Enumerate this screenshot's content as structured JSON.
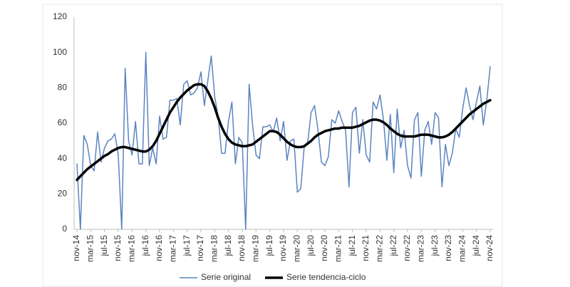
{
  "chart_data": {
    "type": "line",
    "categories": [
      "nov-14",
      null,
      null,
      null,
      "mar-15",
      null,
      null,
      null,
      "jul-15",
      null,
      null,
      null,
      "nov-15",
      null,
      null,
      null,
      "mar-16",
      null,
      null,
      null,
      "jul-16",
      null,
      null,
      null,
      "nov-16",
      null,
      null,
      null,
      "mar-17",
      null,
      null,
      null,
      "jul-17",
      null,
      null,
      null,
      "nov-17",
      null,
      null,
      null,
      "mar-18",
      null,
      null,
      null,
      "jul-18",
      null,
      null,
      null,
      "nov-18",
      null,
      null,
      null,
      "mar-19",
      null,
      null,
      null,
      "jul-19",
      null,
      null,
      null,
      "nov-19",
      null,
      null,
      null,
      "mar-20",
      null,
      null,
      null,
      "jul-20",
      null,
      null,
      null,
      "nov-20",
      null,
      null,
      null,
      "mar-21",
      null,
      null,
      null,
      "jul-21",
      null,
      null,
      null,
      "nov-21",
      null,
      null,
      null,
      "mar-22",
      null,
      null,
      null,
      "jul-22",
      null,
      null,
      null,
      "nov-22",
      null,
      null,
      null,
      "mar-23",
      null,
      null,
      null,
      "jul-23",
      null,
      null,
      null,
      "nov-23",
      null,
      null,
      null,
      "mar-24",
      null,
      null,
      null,
      "jul-24",
      null,
      null,
      null,
      "nov-24"
    ],
    "series": [
      {
        "name": "Serie original",
        "color": "#5b84bf",
        "width": 1.5,
        "values": [
          37,
          0,
          53,
          48,
          36,
          33,
          55,
          38,
          46,
          50,
          51,
          54,
          42,
          0,
          91,
          50,
          42,
          61,
          37,
          37,
          100,
          36,
          46,
          37,
          64,
          51,
          52,
          73,
          73,
          74,
          59,
          82,
          84,
          76,
          77,
          80,
          89,
          70,
          84,
          98,
          75,
          64,
          43,
          43,
          61,
          72,
          37,
          52,
          49,
          0,
          82,
          59,
          42,
          40,
          58,
          58,
          59,
          55,
          63,
          50,
          61,
          39,
          50,
          51,
          21,
          23,
          47,
          49,
          66,
          70,
          56,
          38,
          36,
          41,
          62,
          60,
          67,
          61,
          56,
          24,
          66,
          69,
          43,
          62,
          42,
          38,
          72,
          68,
          76,
          62,
          39,
          65,
          32,
          68,
          46,
          56,
          36,
          29,
          62,
          66,
          30,
          56,
          61,
          48,
          66,
          63,
          24,
          48,
          36,
          43,
          57,
          52,
          68,
          80,
          70,
          62,
          72,
          81,
          59,
          73,
          92
        ]
      },
      {
        "name": "Serie tendencia-ciclo",
        "color": "#000000",
        "width": 3.5,
        "values": [
          28,
          30,
          32,
          34,
          35.5,
          37,
          38.5,
          40,
          41.5,
          42.5,
          44,
          45,
          46,
          46.5,
          46.5,
          46,
          45.5,
          45,
          44.5,
          44,
          44,
          45,
          47,
          50,
          54,
          58,
          62,
          66,
          69,
          72,
          74.5,
          76.5,
          78.5,
          80,
          81.5,
          82,
          82,
          81,
          78,
          74,
          69,
          63,
          58,
          54,
          51,
          49,
          48,
          47.5,
          47,
          47,
          47.5,
          48,
          49.5,
          51,
          52.5,
          54,
          55.5,
          55.5,
          55,
          53.5,
          51.5,
          49.5,
          48,
          47,
          46.5,
          46.5,
          47,
          48.5,
          50,
          52,
          53.5,
          54.5,
          55.5,
          56,
          56.5,
          57,
          57,
          57.5,
          57.5,
          57.5,
          57.5,
          58,
          58.5,
          59.5,
          60.5,
          61.5,
          62,
          62,
          61.5,
          60.5,
          59,
          57,
          55.5,
          54,
          53,
          52.5,
          52.5,
          52.5,
          52.5,
          53,
          53.5,
          53.5,
          53.5,
          53,
          52.5,
          52,
          52,
          52.5,
          53.5,
          55,
          57,
          59,
          61,
          63,
          65,
          66.5,
          68,
          69.5,
          71,
          72,
          73
        ]
      }
    ],
    "ylim": [
      0,
      120
    ],
    "yticks": [
      0,
      20,
      40,
      60,
      80,
      100,
      120
    ],
    "grid": false,
    "legend": "bottom"
  }
}
